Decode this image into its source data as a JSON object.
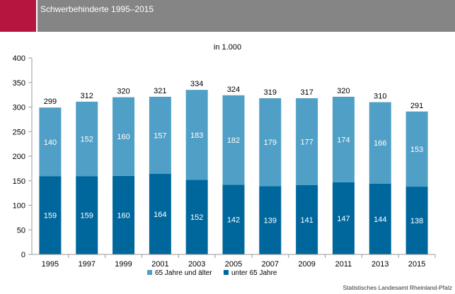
{
  "header": {
    "title": "Schwerbehinderte 1995–2015"
  },
  "colors": {
    "accent": "#b5163f",
    "header_bar": "#858585",
    "light_series": "#4f9fc6",
    "dark_series": "#00679d",
    "axis": "#9a9a9a"
  },
  "chart_data": {
    "type": "bar",
    "stacked": true,
    "title": "",
    "unit_label": "in 1.000",
    "xlabel": "",
    "ylabel": "",
    "ylim": [
      0,
      400
    ],
    "yticks": [
      0,
      50,
      100,
      150,
      200,
      250,
      300,
      350,
      400
    ],
    "grid": false,
    "legend_position": "bottom",
    "categories": [
      "1995",
      "1997",
      "1999",
      "2001",
      "2003",
      "2005",
      "2007",
      "2009",
      "2011",
      "2013",
      "2015"
    ],
    "series": [
      {
        "name": "unter 65 Jahre",
        "values": [
          159,
          159,
          160,
          164,
          152,
          142,
          139,
          141,
          147,
          144,
          138
        ]
      },
      {
        "name": "65 Jahre und älter",
        "values": [
          140,
          152,
          160,
          157,
          183,
          182,
          179,
          177,
          174,
          166,
          153
        ]
      }
    ],
    "totals": [
      299,
      312,
      320,
      321,
      334,
      324,
      319,
      317,
      320,
      310,
      291
    ],
    "legend": [
      "65 Jahre und älter",
      "unter 65 Jahre"
    ]
  },
  "footer": {
    "source": "Statistisches Landesamt Rheinland-Pfalz"
  }
}
